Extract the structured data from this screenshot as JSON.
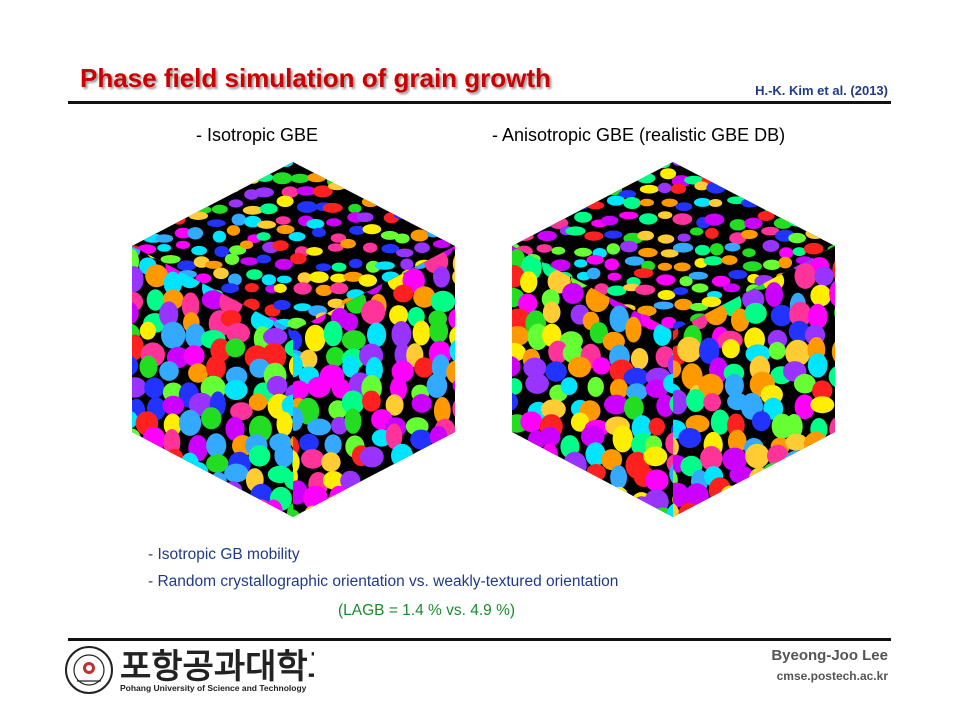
{
  "slide": {
    "title": "Phase field simulation of grain growth",
    "reference": "H.-K. Kim et al. (2013)"
  },
  "panels": [
    {
      "caption": "- Isotropic GBE"
    },
    {
      "caption": "- Anisotropic GBE (realistic GBE DB)"
    }
  ],
  "bullets": {
    "line1": "- Isotropic GB mobility",
    "line2": "- Random crystallographic orientation vs. weakly-textured orientation",
    "note": "(LAGB = 1.4 % vs. 4.9 %)"
  },
  "footer": {
    "university_korean": "포항공과대학교",
    "university_english": "Pohang University of Science and Technology",
    "author": "Byeong-Joo Lee",
    "website": "cmse.postech.ac.kr"
  },
  "colors": {
    "title": "#cc0000",
    "bullet_text": "#1f3a8a",
    "note_text": "#1a8c2a",
    "grain_palette": [
      "#ff2020",
      "#22dd22",
      "#2233ff",
      "#ffee00",
      "#ff00ff",
      "#00e5ff",
      "#ff9900",
      "#9933ff",
      "#00ff88",
      "#ff3399",
      "#33aaff",
      "#66ff33",
      "#cc00ff",
      "#ffcc33"
    ]
  }
}
